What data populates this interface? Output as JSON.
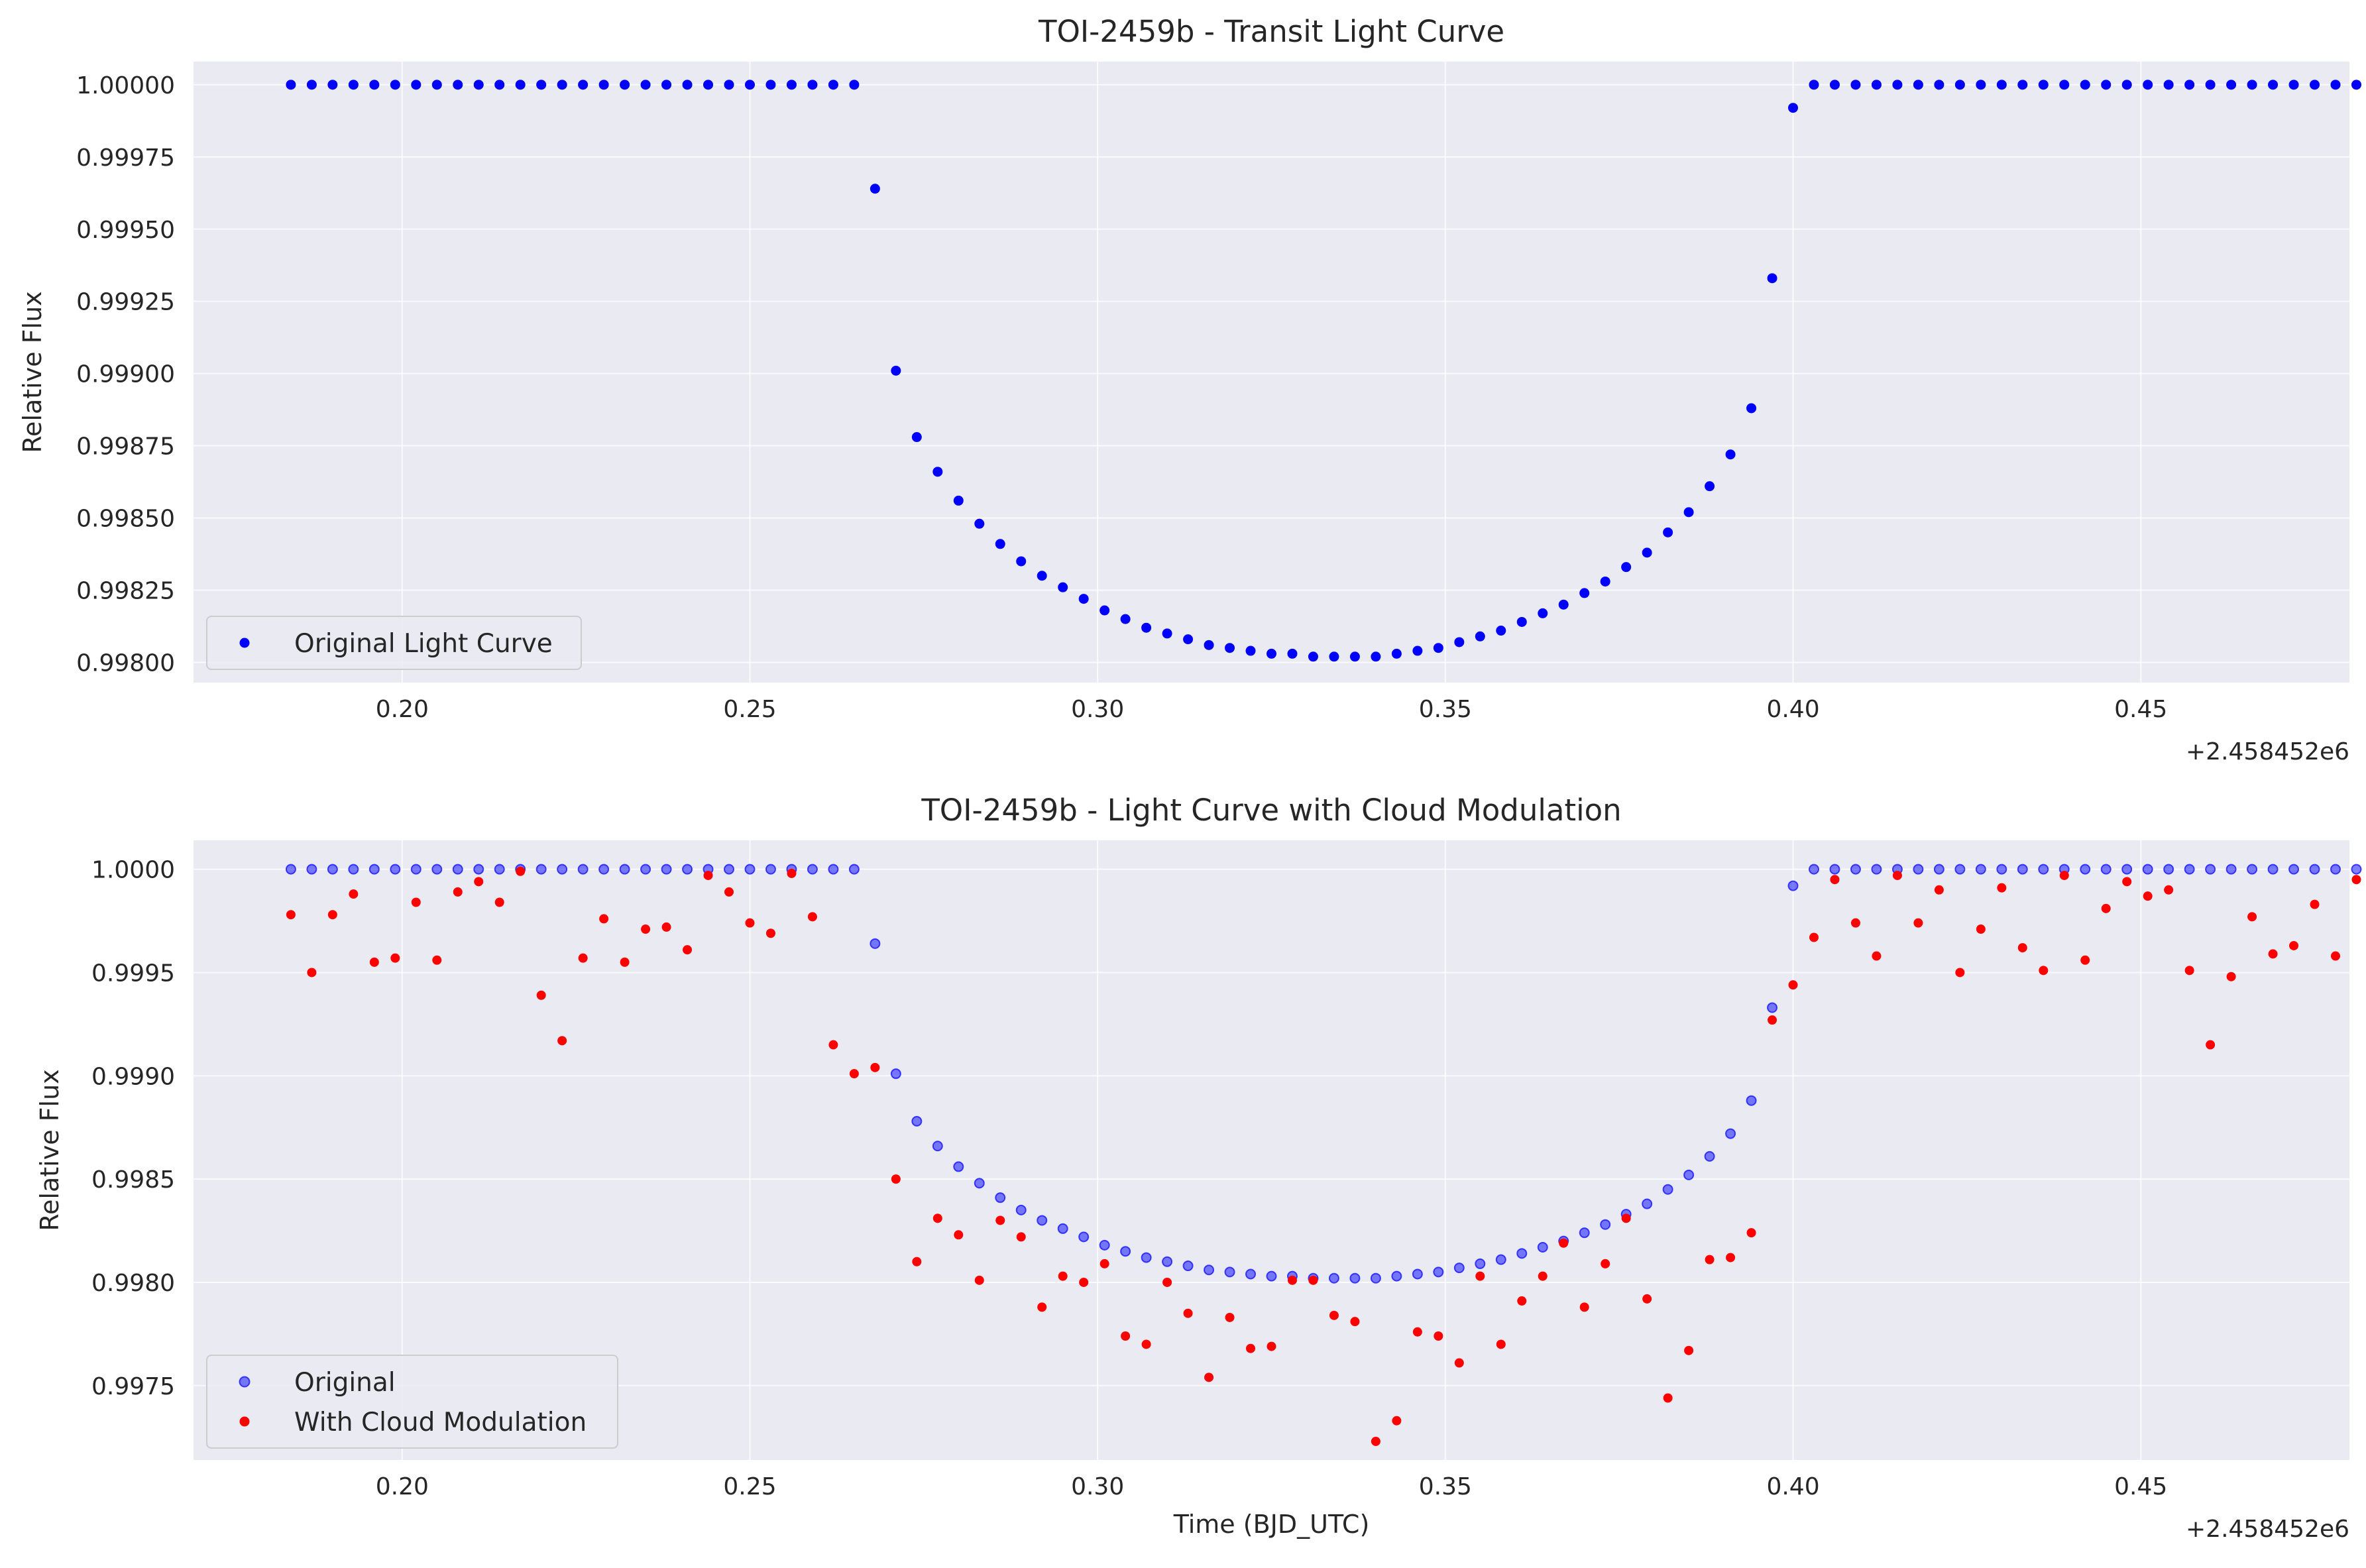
{
  "chart_data": [
    {
      "type": "scatter",
      "title": "TOI-2459b - Transit Light Curve",
      "xlabel": "",
      "ylabel": "Relative Flux",
      "x_offset_label": "+2.458452e6",
      "xlim": [
        0.17,
        0.48
      ],
      "ylim": [
        0.99793,
        1.00008
      ],
      "xticks": [
        0.2,
        0.25,
        0.3,
        0.35,
        0.4,
        0.45
      ],
      "xtick_labels": [
        "0.20",
        "0.25",
        "0.30",
        "0.35",
        "0.40",
        "0.45"
      ],
      "yticks": [
        0.998,
        0.99825,
        0.9985,
        0.99875,
        0.999,
        0.99925,
        0.9995,
        0.99975,
        1.0
      ],
      "ytick_labels": [
        "0.99800",
        "0.99825",
        "0.99850",
        "0.99875",
        "0.99900",
        "0.99925",
        "0.99950",
        "0.99975",
        "1.00000"
      ],
      "grid": true,
      "legend_position": "lower-left",
      "series": [
        {
          "name": "Original Light Curve",
          "color": "#0000ff",
          "alpha": 1.0,
          "x": [
            0.184,
            0.187,
            0.19,
            0.193,
            0.196,
            0.199,
            0.202,
            0.205,
            0.208,
            0.211,
            0.214,
            0.217,
            0.22,
            0.223,
            0.226,
            0.229,
            0.232,
            0.235,
            0.238,
            0.241,
            0.244,
            0.247,
            0.25,
            0.253,
            0.256,
            0.259,
            0.262,
            0.265,
            0.268,
            0.271,
            0.274,
            0.277,
            0.28,
            0.283,
            0.286,
            0.289,
            0.292,
            0.295,
            0.298,
            0.301,
            0.304,
            0.307,
            0.31,
            0.313,
            0.316,
            0.319,
            0.322,
            0.325,
            0.328,
            0.331,
            0.334,
            0.337,
            0.34,
            0.343,
            0.346,
            0.349,
            0.352,
            0.355,
            0.358,
            0.361,
            0.364,
            0.367,
            0.37,
            0.373,
            0.376,
            0.379,
            0.382,
            0.385,
            0.388,
            0.391,
            0.394,
            0.397,
            0.4,
            0.403,
            0.406,
            0.409,
            0.412,
            0.415,
            0.418,
            0.421,
            0.424,
            0.427,
            0.43,
            0.433,
            0.436,
            0.439,
            0.442,
            0.445,
            0.448,
            0.451,
            0.454,
            0.457,
            0.46,
            0.463,
            0.466,
            0.469,
            0.472,
            0.475,
            0.478,
            0.481
          ],
          "y": [
            1.0,
            1.0,
            1.0,
            1.0,
            1.0,
            1.0,
            1.0,
            1.0,
            1.0,
            1.0,
            1.0,
            1.0,
            1.0,
            1.0,
            1.0,
            1.0,
            1.0,
            1.0,
            1.0,
            1.0,
            1.0,
            1.0,
            1.0,
            1.0,
            1.0,
            1.0,
            1.0,
            1.0,
            0.99964,
            0.99901,
            0.99878,
            0.99866,
            0.99856,
            0.99848,
            0.99841,
            0.99835,
            0.9983,
            0.99826,
            0.99822,
            0.99818,
            0.99815,
            0.99812,
            0.9981,
            0.99808,
            0.99806,
            0.99805,
            0.99804,
            0.99803,
            0.99803,
            0.99802,
            0.99802,
            0.99802,
            0.99802,
            0.99803,
            0.99804,
            0.99805,
            0.99807,
            0.99809,
            0.99811,
            0.99814,
            0.99817,
            0.9982,
            0.99824,
            0.99828,
            0.99833,
            0.99838,
            0.99845,
            0.99852,
            0.99861,
            0.99872,
            0.99888,
            0.99933,
            0.99992,
            1.0,
            1.0,
            1.0,
            1.0,
            1.0,
            1.0,
            1.0,
            1.0,
            1.0,
            1.0,
            1.0,
            1.0,
            1.0,
            1.0,
            1.0,
            1.0,
            1.0,
            1.0,
            1.0,
            1.0,
            1.0,
            1.0,
            1.0,
            1.0,
            1.0,
            1.0,
            1.0
          ]
        }
      ]
    },
    {
      "type": "scatter",
      "title": "TOI-2459b - Light Curve with Cloud Modulation",
      "xlabel": "Time (BJD_UTC)",
      "ylabel": "Relative Flux",
      "x_offset_label": "+2.458452e6",
      "xlim": [
        0.17,
        0.48
      ],
      "ylim": [
        0.99714,
        1.00014
      ],
      "xticks": [
        0.2,
        0.25,
        0.3,
        0.35,
        0.4,
        0.45
      ],
      "xtick_labels": [
        "0.20",
        "0.25",
        "0.30",
        "0.35",
        "0.40",
        "0.45"
      ],
      "yticks": [
        0.9975,
        0.998,
        0.9985,
        0.999,
        0.9995,
        1.0
      ],
      "ytick_labels": [
        "0.9975",
        "0.9980",
        "0.9985",
        "0.9990",
        "0.9995",
        "1.0000"
      ],
      "grid": true,
      "legend_position": "lower-left",
      "series": [
        {
          "name": "Original",
          "color": "#0000ff",
          "alpha": 0.5,
          "x": [
            0.184,
            0.187,
            0.19,
            0.193,
            0.196,
            0.199,
            0.202,
            0.205,
            0.208,
            0.211,
            0.214,
            0.217,
            0.22,
            0.223,
            0.226,
            0.229,
            0.232,
            0.235,
            0.238,
            0.241,
            0.244,
            0.247,
            0.25,
            0.253,
            0.256,
            0.259,
            0.262,
            0.265,
            0.268,
            0.271,
            0.274,
            0.277,
            0.28,
            0.283,
            0.286,
            0.289,
            0.292,
            0.295,
            0.298,
            0.301,
            0.304,
            0.307,
            0.31,
            0.313,
            0.316,
            0.319,
            0.322,
            0.325,
            0.328,
            0.331,
            0.334,
            0.337,
            0.34,
            0.343,
            0.346,
            0.349,
            0.352,
            0.355,
            0.358,
            0.361,
            0.364,
            0.367,
            0.37,
            0.373,
            0.376,
            0.379,
            0.382,
            0.385,
            0.388,
            0.391,
            0.394,
            0.397,
            0.4,
            0.403,
            0.406,
            0.409,
            0.412,
            0.415,
            0.418,
            0.421,
            0.424,
            0.427,
            0.43,
            0.433,
            0.436,
            0.439,
            0.442,
            0.445,
            0.448,
            0.451,
            0.454,
            0.457,
            0.46,
            0.463,
            0.466,
            0.469,
            0.472,
            0.475,
            0.478,
            0.481
          ],
          "y": [
            1.0,
            1.0,
            1.0,
            1.0,
            1.0,
            1.0,
            1.0,
            1.0,
            1.0,
            1.0,
            1.0,
            1.0,
            1.0,
            1.0,
            1.0,
            1.0,
            1.0,
            1.0,
            1.0,
            1.0,
            1.0,
            1.0,
            1.0,
            1.0,
            1.0,
            1.0,
            1.0,
            1.0,
            0.99964,
            0.99901,
            0.99878,
            0.99866,
            0.99856,
            0.99848,
            0.99841,
            0.99835,
            0.9983,
            0.99826,
            0.99822,
            0.99818,
            0.99815,
            0.99812,
            0.9981,
            0.99808,
            0.99806,
            0.99805,
            0.99804,
            0.99803,
            0.99803,
            0.99802,
            0.99802,
            0.99802,
            0.99802,
            0.99803,
            0.99804,
            0.99805,
            0.99807,
            0.99809,
            0.99811,
            0.99814,
            0.99817,
            0.9982,
            0.99824,
            0.99828,
            0.99833,
            0.99838,
            0.99845,
            0.99852,
            0.99861,
            0.99872,
            0.99888,
            0.99933,
            0.99992,
            1.0,
            1.0,
            1.0,
            1.0,
            1.0,
            1.0,
            1.0,
            1.0,
            1.0,
            1.0,
            1.0,
            1.0,
            1.0,
            1.0,
            1.0,
            1.0,
            1.0,
            1.0,
            1.0,
            1.0,
            1.0,
            1.0,
            1.0,
            1.0,
            1.0,
            1.0,
            1.0
          ]
        },
        {
          "name": "With Cloud Modulation",
          "color": "#ff0000",
          "alpha": 1.0,
          "x": [
            0.184,
            0.187,
            0.19,
            0.193,
            0.196,
            0.199,
            0.202,
            0.205,
            0.208,
            0.211,
            0.214,
            0.217,
            0.22,
            0.223,
            0.226,
            0.229,
            0.232,
            0.235,
            0.238,
            0.241,
            0.244,
            0.247,
            0.25,
            0.253,
            0.256,
            0.259,
            0.262,
            0.265,
            0.268,
            0.271,
            0.274,
            0.277,
            0.28,
            0.283,
            0.286,
            0.289,
            0.292,
            0.295,
            0.298,
            0.301,
            0.304,
            0.307,
            0.31,
            0.313,
            0.316,
            0.319,
            0.322,
            0.325,
            0.328,
            0.331,
            0.334,
            0.337,
            0.34,
            0.343,
            0.346,
            0.349,
            0.352,
            0.355,
            0.358,
            0.361,
            0.364,
            0.367,
            0.37,
            0.373,
            0.376,
            0.379,
            0.382,
            0.385,
            0.388,
            0.391,
            0.394,
            0.397,
            0.4,
            0.403,
            0.406,
            0.409,
            0.412,
            0.415,
            0.418,
            0.421,
            0.424,
            0.427,
            0.43,
            0.433,
            0.436,
            0.439,
            0.442,
            0.445,
            0.448,
            0.451,
            0.454,
            0.457,
            0.46,
            0.463,
            0.466,
            0.469,
            0.472,
            0.475,
            0.478,
            0.481
          ],
          "y": [
            0.99978,
            0.9995,
            0.99978,
            0.99988,
            0.99955,
            0.99957,
            0.99984,
            0.99956,
            0.99989,
            0.99994,
            0.99984,
            0.99999,
            0.99939,
            0.99917,
            0.99957,
            0.99976,
            0.99955,
            0.99971,
            0.99972,
            0.99961,
            0.99997,
            0.99989,
            0.99974,
            0.99969,
            0.99998,
            0.99977,
            0.99915,
            0.99901,
            0.99904,
            0.9985,
            0.9981,
            0.99831,
            0.99823,
            0.99801,
            0.9983,
            0.99822,
            0.99788,
            0.99803,
            0.998,
            0.99809,
            0.99774,
            0.9977,
            0.998,
            0.99785,
            0.99754,
            0.99783,
            0.99768,
            0.99769,
            0.99801,
            0.99801,
            0.99784,
            0.99781,
            0.99723,
            0.99733,
            0.99776,
            0.99774,
            0.99761,
            0.99803,
            0.9977,
            0.99791,
            0.99803,
            0.99819,
            0.99788,
            0.99809,
            0.99831,
            0.99792,
            0.99744,
            0.99767,
            0.99811,
            0.99812,
            0.99824,
            0.99927,
            0.99944,
            0.99967,
            0.99995,
            0.99974,
            0.99958,
            0.99997,
            0.99974,
            0.9999,
            0.9995,
            0.99971,
            0.99991,
            0.99962,
            0.99951,
            0.99997,
            0.99956,
            0.99981,
            0.99994,
            0.99987,
            0.9999,
            0.99951,
            0.99915,
            0.99948,
            0.99977,
            0.99959,
            0.99963,
            0.99983,
            0.99958,
            0.99995
          ]
        }
      ]
    }
  ]
}
